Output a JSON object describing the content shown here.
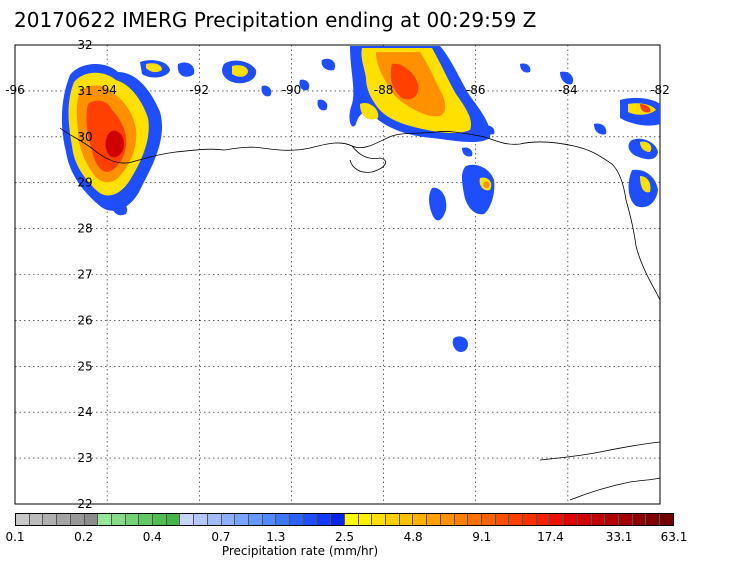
{
  "title": "20170622 IMERG Precipitation ending at 00:29:59 Z",
  "map": {
    "lon_range": [
      -96,
      -82
    ],
    "lat_range": [
      22,
      32
    ],
    "lon_labels": [
      "-96",
      "-94",
      "-92",
      "-90",
      "-88",
      "-86",
      "-84",
      "-82"
    ],
    "lon_values": [
      -96,
      -94,
      -92,
      -90,
      -88,
      -86,
      -84,
      -82
    ],
    "lat_labels": [
      "32",
      "31",
      "30",
      "29",
      "28",
      "27",
      "26",
      "25",
      "24",
      "23",
      "22"
    ],
    "lat_values": [
      32,
      31,
      30,
      29,
      28,
      27,
      26,
      25,
      24,
      23,
      22
    ],
    "grid": "dotted",
    "precip_regions": [
      "Southeast Texas / Southwest Louisiana coast",
      "Mississippi / Alabama coast",
      "Eastern Gulf near 29N 86W",
      "Florida west coast near 82W",
      "Isolated cell near 25.5N 86.5W"
    ]
  },
  "colorbar": {
    "label": "Precipitation rate (mm/hr)",
    "ticks": [
      "0.1",
      "0.2",
      "0.4",
      "0.7",
      "1.3",
      "2.5",
      "4.8",
      "9.1",
      "17.4",
      "33.1",
      "63.1"
    ],
    "colors": [
      "#c8c8c8",
      "#bcbcbc",
      "#b0b0b0",
      "#a4a4a4",
      "#989898",
      "#8c8c8c",
      "#98e69a",
      "#86dc88",
      "#74d276",
      "#62c864",
      "#50be52",
      "#46b448",
      "#c8d4ff",
      "#b4c8ff",
      "#a0bcff",
      "#8cb0ff",
      "#78a4ff",
      "#6498ff",
      "#4f8aff",
      "#3c76ff",
      "#2a62ff",
      "#1e4eff",
      "#123aff",
      "#0626f0",
      "#ffff00",
      "#fff000",
      "#ffe000",
      "#ffd000",
      "#ffc000",
      "#ffb000",
      "#ffa000",
      "#ff9000",
      "#ff8000",
      "#ff7000",
      "#ff6000",
      "#ff5000",
      "#ff4000",
      "#ff3000",
      "#f82000",
      "#ec1000",
      "#e00000",
      "#d00000",
      "#c00000",
      "#b00000",
      "#a00000",
      "#900000",
      "#800000",
      "#700000"
    ],
    "tick_indices": [
      0,
      5,
      10,
      15,
      19,
      24,
      29,
      34,
      39,
      44,
      48
    ]
  }
}
